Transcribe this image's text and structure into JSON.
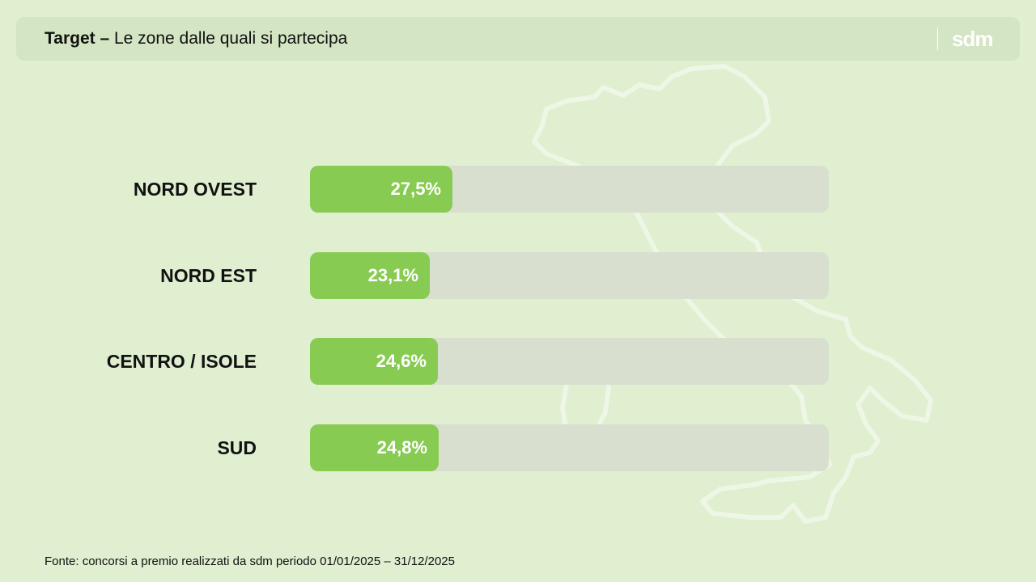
{
  "header": {
    "title_bold": "Target –",
    "title_rest": " Le zone dalle quali si partecipa",
    "logo": "sdm"
  },
  "chart_data": {
    "type": "bar",
    "orientation": "horizontal",
    "categories": [
      "NORD OVEST",
      "NORD EST",
      "CENTRO / ISOLE",
      "SUD"
    ],
    "values": [
      27.5,
      23.1,
      24.6,
      24.8
    ],
    "value_labels": [
      "27,5%",
      "23,1%",
      "24,6%",
      "24,8%"
    ],
    "xlim": [
      0,
      100
    ],
    "unit": "%",
    "grid": false,
    "colors": {
      "bar": "#88cb52",
      "track": "#d8dfcf"
    }
  },
  "footer": {
    "source": "Fonte: concorsi a premio realizzati da sdm periodo 01/01/2025 – 31/12/2025"
  },
  "colors": {
    "background": "#dfefd0",
    "header_bg": "#d3e5c3",
    "text": "#111111"
  },
  "icons": {
    "background_map": "italy-map-outline-icon"
  }
}
